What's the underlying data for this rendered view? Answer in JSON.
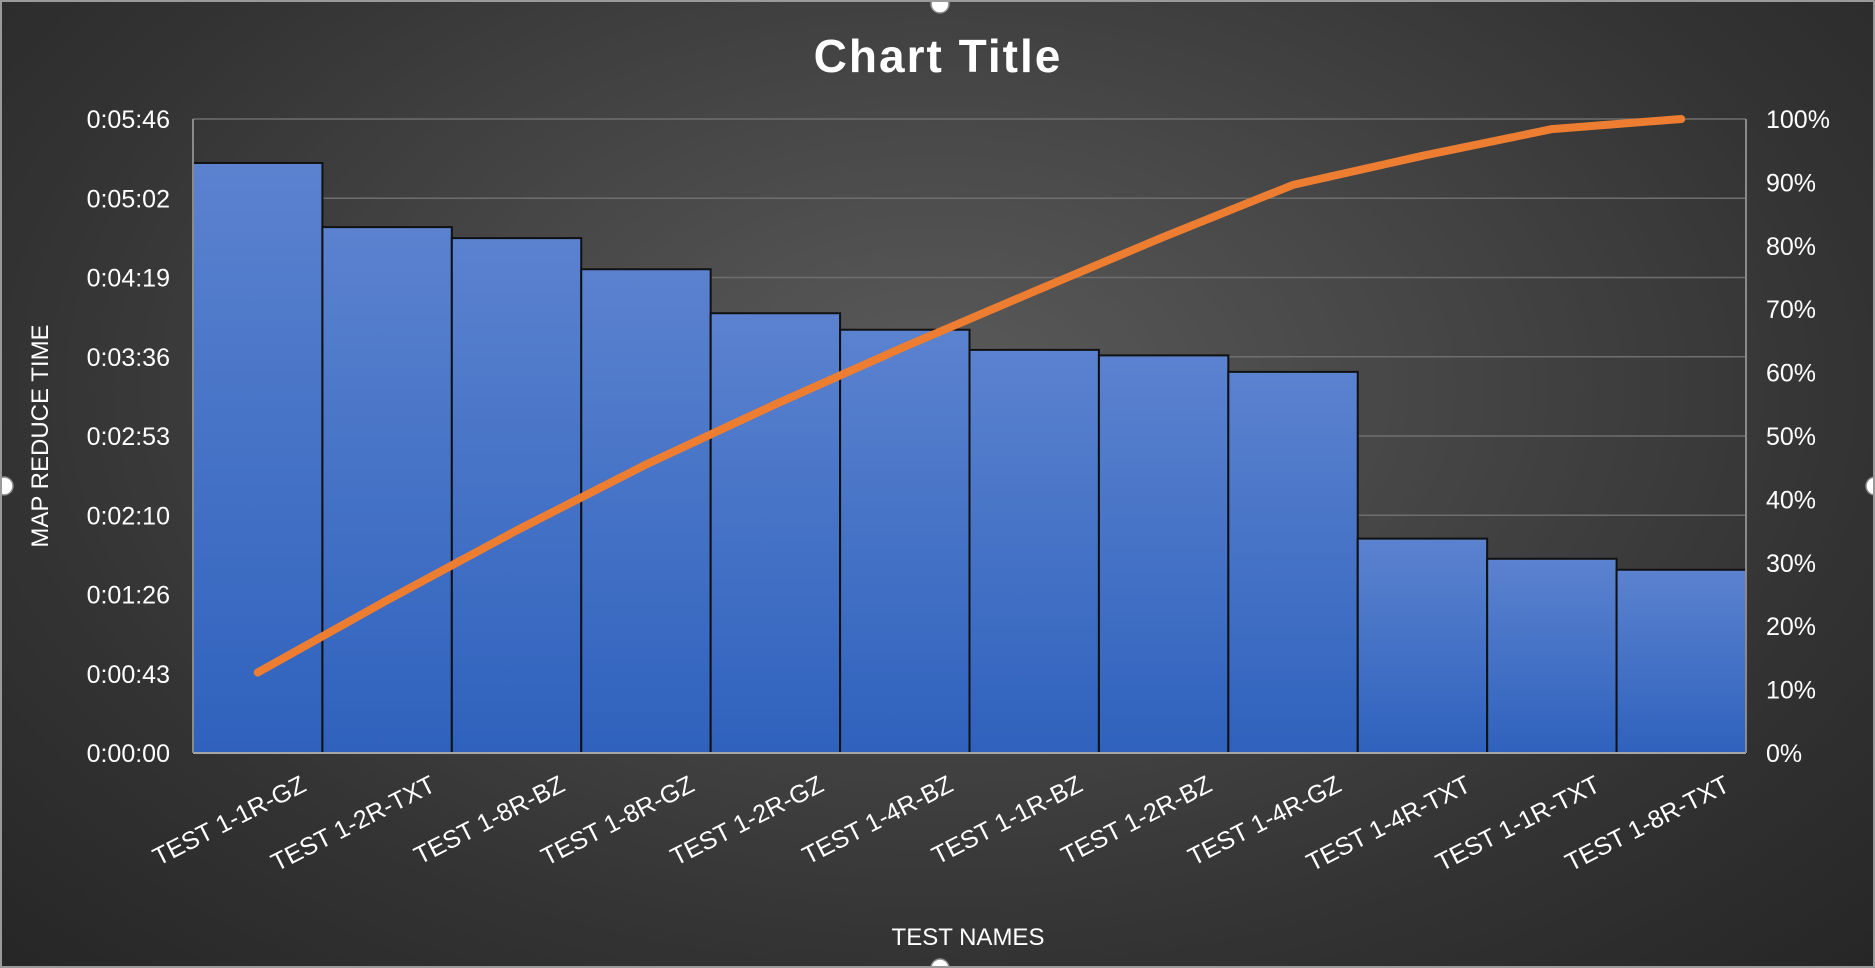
{
  "colors": {
    "bar": "#4472c4",
    "line": "#ed7d31",
    "text": "#ffffff",
    "grid": "#6e6e6e"
  },
  "chart_data": {
    "type": "bar",
    "title": "Chart Title",
    "xlabel": "TEST NAMES",
    "ylabel": "MAP REDUCE TIME",
    "categories": [
      "TEST 1-1R-GZ",
      "TEST 1-2R-TXT",
      "TEST 1-8R-BZ",
      "TEST 1-8R-GZ",
      "TEST 1-2R-GZ",
      "TEST 1-4R-BZ",
      "TEST 1-1R-BZ",
      "TEST 1-2R-BZ",
      "TEST 1-4R-GZ",
      "TEST 1-4R-TXT",
      "TEST 1-1R-TXT",
      "TEST 1-8R-TXT"
    ],
    "series": [
      {
        "type": "bar",
        "axis": "left",
        "values_seconds": [
          322,
          287,
          281,
          264,
          240,
          231,
          220,
          217,
          208,
          117,
          106,
          100
        ]
      },
      {
        "type": "line",
        "axis": "right",
        "values_percent": [
          12.7,
          24.1,
          35.1,
          45.5,
          55.0,
          64.1,
          72.8,
          81.4,
          89.6,
          94.2,
          98.4,
          100
        ]
      }
    ],
    "y_left": {
      "ticks": [
        "0:00:00",
        "0:00:43",
        "0:01:26",
        "0:02:10",
        "0:02:53",
        "0:03:36",
        "0:04:19",
        "0:05:02",
        "0:05:46"
      ],
      "max_seconds": 346
    },
    "y_right": {
      "ticks": [
        "0%",
        "10%",
        "20%",
        "30%",
        "40%",
        "50%",
        "60%",
        "70%",
        "80%",
        "90%",
        "100%"
      ],
      "max_percent": 100
    },
    "grid": true,
    "legend": "none"
  }
}
